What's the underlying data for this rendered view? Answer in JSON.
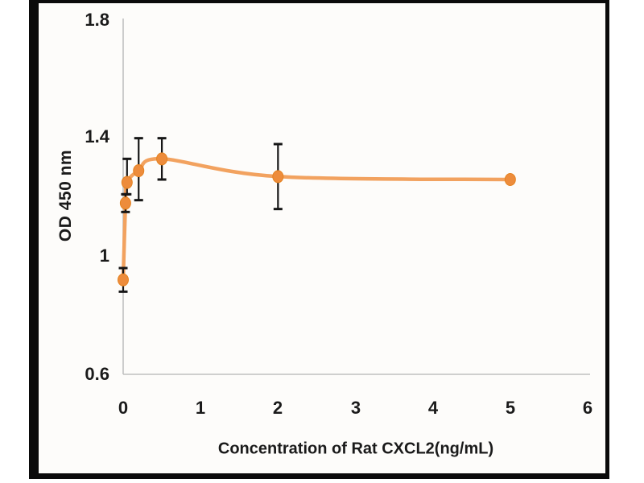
{
  "figure": {
    "frame_color": "#0b0b0b",
    "plot_background": "#fdfcfa"
  },
  "chart_data": {
    "type": "line",
    "title": "",
    "xlabel": "Concentration of Rat CXCL2(ng/mL)",
    "ylabel": "OD 450 nm",
    "xlim": [
      0,
      6
    ],
    "ylim": [
      0.6,
      1.8
    ],
    "xticks": [
      "0",
      "1",
      "2",
      "3",
      "4",
      "5",
      "6"
    ],
    "yticks": [
      "1.8",
      "1.4",
      "1",
      "0.6"
    ],
    "grid": "off",
    "legend": "none",
    "axis_color": "#c0c0c0",
    "text_color": "#1a1a1a",
    "series": [
      {
        "x": [
          0,
          0.03,
          0.05,
          0.2,
          0.5,
          2,
          5
        ],
        "y": [
          0.92,
          1.18,
          1.25,
          1.29,
          1.33,
          1.27,
          1.26
        ],
        "err_up": [
          0.04,
          0.03,
          0.08,
          0.11,
          0.07,
          0.11,
          0
        ],
        "err_down": [
          0.04,
          0.03,
          0.04,
          0.1,
          0.07,
          0.11,
          0
        ],
        "line_color": "#f2a25f",
        "marker_color": "#ed8c3c",
        "marker_edge_color": "#e5821f",
        "error_bar_color": "#161616"
      }
    ]
  }
}
